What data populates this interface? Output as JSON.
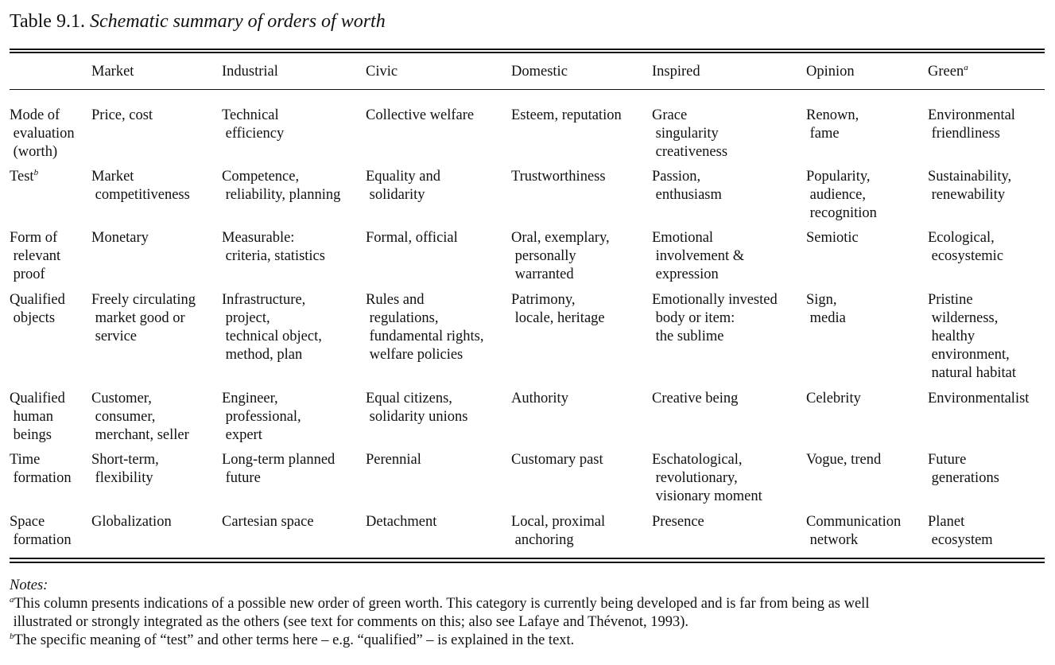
{
  "caption": {
    "number": "Table 9.1.",
    "title": "Schematic summary of orders of worth"
  },
  "columns": [
    {
      "label": "Market",
      "sup": ""
    },
    {
      "label": "Industrial",
      "sup": ""
    },
    {
      "label": "Civic",
      "sup": ""
    },
    {
      "label": "Domestic",
      "sup": ""
    },
    {
      "label": "Inspired",
      "sup": ""
    },
    {
      "label": "Opinion",
      "sup": ""
    },
    {
      "label": "Green",
      "sup": "a"
    }
  ],
  "rows": [
    {
      "label": "Mode of\n evaluation\n (worth)",
      "sup": "",
      "cells": [
        "Price, cost",
        "Technical\n efficiency",
        "Collective welfare",
        "Esteem, reputation",
        "Grace\n singularity\n creativeness",
        "Renown,\n fame",
        "Environmental\n friendliness"
      ]
    },
    {
      "label": "Test",
      "sup": "b",
      "cells": [
        "Market\n competitiveness",
        "Competence,\n reliability, planning",
        "Equality and\n solidarity",
        "Trustworthiness",
        "Passion,\n enthusiasm",
        "Popularity,\n audience,\n recognition",
        "Sustainability,\n renewability"
      ]
    },
    {
      "label": "Form of\n relevant\n proof",
      "sup": "",
      "cells": [
        "Monetary",
        "Measurable:\n criteria, statistics",
        "Formal, official",
        "Oral, exemplary,\n personally\n warranted",
        "Emotional\n involvement &\n expression",
        "Semiotic",
        "Ecological,\n ecosystemic"
      ]
    },
    {
      "label": "Qualified\n objects",
      "sup": "",
      "cells": [
        "Freely circulating\n market good or\n service",
        "Infrastructure,\n project,\n technical object,\n method, plan",
        "Rules and\n regulations,\n fundamental rights,\n welfare policies",
        "Patrimony,\n locale, heritage",
        "Emotionally invested\n body or item:\n the sublime",
        "Sign,\n media",
        "Pristine\n wilderness,\n healthy\n environment,\n natural habitat"
      ]
    },
    {
      "label": "Qualified\n human\n beings",
      "sup": "",
      "cells": [
        "Customer,\n consumer,\n merchant, seller",
        "Engineer,\n professional,\n expert",
        "Equal citizens,\n solidarity unions",
        "Authority",
        "Creative being",
        "Celebrity",
        "Environmentalist"
      ]
    },
    {
      "label": "Time\n formation",
      "sup": "",
      "cells": [
        "Short-term,\n flexibility",
        "Long-term planned\n future",
        "Perennial",
        "Customary past",
        "Eschatological,\n revolutionary,\n visionary moment",
        "Vogue, trend",
        "Future\n generations"
      ]
    },
    {
      "label": "Space\n formation",
      "sup": "",
      "cells": [
        "Globalization",
        "Cartesian space",
        "Detachment",
        "Local, proximal\n anchoring",
        "Presence",
        "Communication\n network",
        "Planet\n ecosystem"
      ]
    }
  ],
  "notes": {
    "heading": "Notes:",
    "a_marker": "a",
    "a_line1": "This column presents indications of a possible new order of green worth. This category is currently being developed and is far from being as well",
    "a_line2": " illustrated or strongly integrated as the others (see text for comments on this; also see Lafaye and Thévenot, 1993).",
    "b_marker": "b",
    "b_line1": "The specific meaning of “test” and other terms here – e.g. “qualified” – is explained in the text."
  }
}
